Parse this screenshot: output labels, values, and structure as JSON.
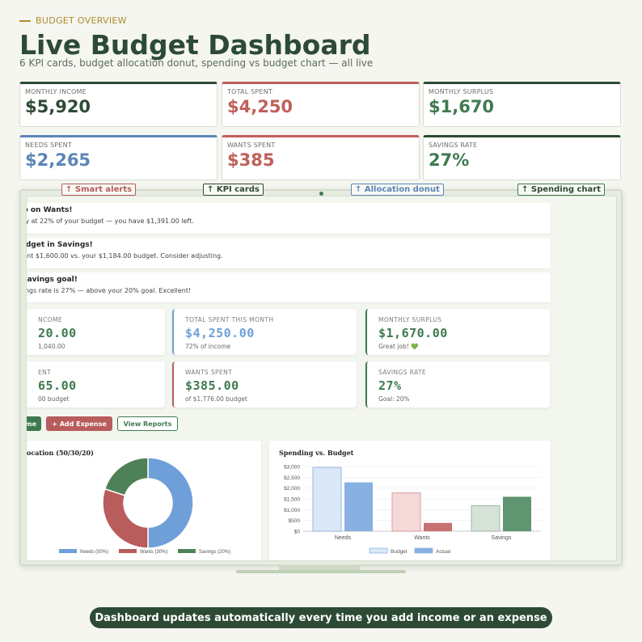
{
  "header": {
    "eyebrow": "BUDGET OVERVIEW",
    "title": "Live Budget Dashboard",
    "subtitle": "6 KPI cards, budget allocation donut, spending vs budget chart — all live"
  },
  "kpis": [
    {
      "label": "MONTHLY INCOME",
      "value": "$5,920",
      "color": "#2d4a35"
    },
    {
      "label": "TOTAL SPENT",
      "value": "$4,250",
      "color": "#c0605a"
    },
    {
      "label": "MONTHLY SURPLUS",
      "value": "$1,670",
      "color": "#3f7a4f"
    },
    {
      "label": "NEEDS SPENT",
      "value": "$2,265",
      "color": "#5b85b8"
    },
    {
      "label": "WANTS SPENT",
      "value": "$385",
      "color": "#c0605a"
    },
    {
      "label": "SAVINGS RATE",
      "value": "27%",
      "color": "#3f7a4f"
    }
  ],
  "callouts": {
    "smart_alerts": "↑ Smart alerts",
    "kpi_cards": "↑ KPI cards",
    "allocation_donut": "↑ Allocation donut",
    "spending_chart": "↑ Spending chart"
  },
  "alerts": [
    {
      "title": "job on Wants!",
      "body": "only at 22% of your budget — you have $1,391.00 left."
    },
    {
      "title": "budget in Savings!",
      "body": "spent $1,600.00 vs. your $1,184.00 budget. Consider adjusting."
    },
    {
      "title": "e savings goal!",
      "body": "avings rate is 27% — above your 20% goal. Excellent!"
    }
  ],
  "metrics": [
    {
      "label": "NCOME",
      "value": "20.00",
      "sub": "1,040.00",
      "color": "#3f7a4f"
    },
    {
      "label": "TOTAL SPENT THIS MONTH",
      "value": "$4,250.00",
      "sub": "72% of income",
      "color": "#6f9fd8"
    },
    {
      "label": "MONTHLY SURPLUS",
      "value": "$1,670.00",
      "sub": "Great job! 💚",
      "color": "#3f7a4f"
    },
    {
      "label": "ENT",
      "value": "65.00",
      "sub": "00 budget",
      "color": "#3f7a4f"
    },
    {
      "label": "WANTS SPENT",
      "value": "$385.00",
      "sub": "of $1,776.00 budget",
      "color": "#3f7a4f"
    },
    {
      "label": "SAVINGS RATE",
      "value": "27%",
      "sub": "Goal: 20%",
      "color": "#3f7a4f"
    }
  ],
  "actions": {
    "income_btn": "me",
    "add_expense_btn": "+ Add Expense",
    "view_reports_btn": "View Reports"
  },
  "donut": {
    "title": "ocation (50/30/20)",
    "legend": [
      "Needs (50%)",
      "Wants (30%)",
      "Savings (20%)"
    ]
  },
  "bar_chart": {
    "title": "Spending vs. Budget",
    "legend": [
      "Budget",
      "Actual"
    ]
  },
  "chart_data": [
    {
      "type": "pie",
      "title": "",
      "categories": [
        "Needs",
        "Wants",
        "Savings"
      ],
      "values": [
        50,
        30,
        20
      ],
      "colors": [
        "#6f9fd8",
        "#b85c5c",
        "#4f8159"
      ],
      "legend_position": "bottom"
    },
    {
      "type": "bar",
      "title": "Spending vs. Budget",
      "categories": [
        "Needs",
        "Wants",
        "Savings"
      ],
      "series": [
        {
          "name": "Budget",
          "values": [
            2960,
            1776,
            1184
          ]
        },
        {
          "name": "Actual",
          "values": [
            2265,
            385,
            1600
          ]
        }
      ],
      "ylim": [
        0,
        3000
      ],
      "yticks": [
        "$0",
        "$500",
        "$1,000",
        "$1,500",
        "$2,000",
        "$2,500",
        "$3,000"
      ],
      "legend_position": "bottom",
      "grid": true
    }
  ],
  "footer": {
    "banner": "Dashboard updates automatically every time you add income or an expense"
  },
  "colors": {
    "brand_green": "#2d4a35",
    "accent_gold": "#b08a2e",
    "red": "#c0605a",
    "blue": "#5b85b8"
  }
}
